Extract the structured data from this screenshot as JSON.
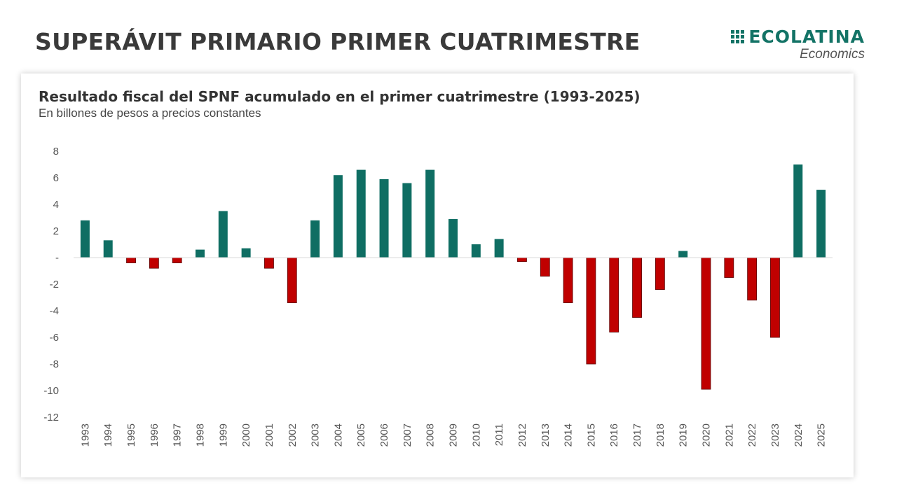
{
  "header": {
    "title": "SUPERÁVIT PRIMARIO PRIMER CUATRIMESTRE",
    "logo_name": "ECOLATINA",
    "logo_sub": "Economics"
  },
  "colors": {
    "positive": "#0f6e63",
    "negative": "#c00000",
    "axis": "#d9d9d9"
  },
  "chart_data": {
    "type": "bar",
    "title": "Resultado fiscal del SPNF acumulado en el primer cuatrimestre (1993-2025)",
    "subtitle": "En billones de pesos a precios constantes",
    "xlabel": "",
    "ylabel": "",
    "ylim": [
      -12,
      8
    ],
    "yticks": [
      8,
      6,
      4,
      2,
      0,
      -2,
      -4,
      -6,
      -8,
      -10,
      -12
    ],
    "ytick_labels": [
      "8",
      "6",
      "4",
      "2",
      "-",
      "-2",
      "-4",
      "-6",
      "-8",
      "-10",
      "-12"
    ],
    "grid": false,
    "categories": [
      "1993",
      "1994",
      "1995",
      "1996",
      "1997",
      "1998",
      "1999",
      "2000",
      "2001",
      "2002",
      "2003",
      "2004",
      "2005",
      "2006",
      "2007",
      "2008",
      "2009",
      "2010",
      "2011",
      "2012",
      "2013",
      "2014",
      "2015",
      "2016",
      "2017",
      "2018",
      "2019",
      "2020",
      "2021",
      "2022",
      "2023",
      "2024",
      "2025"
    ],
    "values": [
      2.8,
      1.3,
      -0.4,
      -0.8,
      -0.4,
      0.6,
      3.5,
      0.7,
      -0.8,
      -3.4,
      2.8,
      6.2,
      6.6,
      5.9,
      5.6,
      6.6,
      2.9,
      1.0,
      1.4,
      -0.3,
      -1.4,
      -3.4,
      -8.0,
      -5.6,
      -4.5,
      -2.4,
      0.5,
      -9.9,
      -1.5,
      -3.2,
      -6.0,
      7.0,
      5.1
    ]
  }
}
